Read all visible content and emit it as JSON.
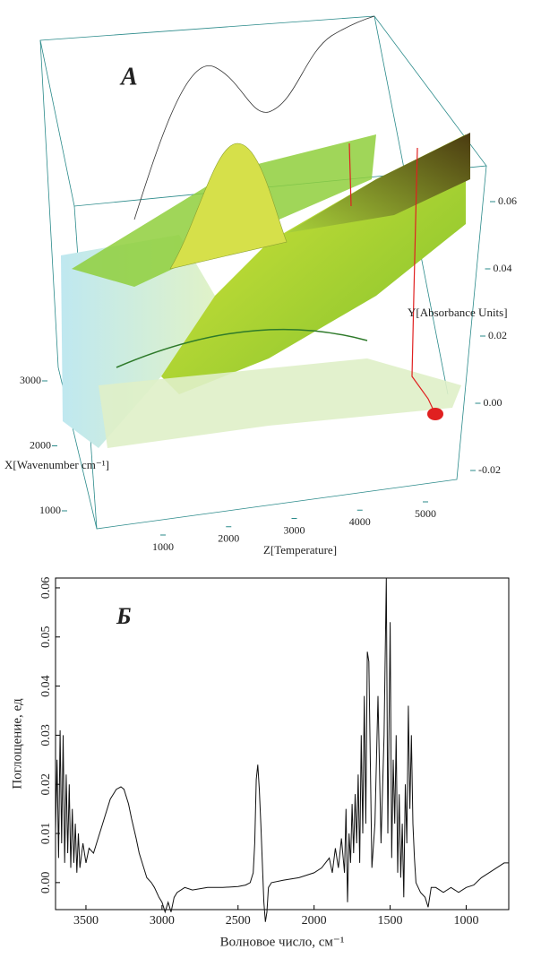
{
  "chart_data": [
    {
      "type": "surface3d",
      "title": "A",
      "xlabel": "X[Wavenumber cm⁻¹]",
      "ylabel": "Y[Absorbance Units]",
      "zlabel": "Z[Temperature]",
      "xlim": [
        1000,
        3000
      ],
      "xticks": [
        1000,
        2000,
        3000
      ],
      "ylim": [
        -0.02,
        0.06
      ],
      "yticks": [
        -0.02,
        {
          "value": 0,
          "label": "0.00"
        },
        0.02,
        0.04,
        0.06
      ],
      "zlim": [
        1000,
        5000
      ],
      "zticks": [
        1000,
        2000,
        3000,
        4000,
        5000
      ]
    },
    {
      "type": "line",
      "title": "Б",
      "xlabel": "Волновое число, см⁻¹",
      "ylabel": "Поглощение, ед",
      "xlim": [
        3700,
        720
      ],
      "xticks": [
        3500,
        3000,
        2500,
        2000,
        1500,
        1000
      ],
      "ylim": [
        -0.0055,
        0.062
      ],
      "yticks": [
        {
          "value": 0,
          "label": "0.00"
        },
        0.01,
        0.02,
        0.03,
        0.04,
        0.05,
        0.06
      ],
      "color": "#111111",
      "x": [
        3700,
        3690,
        3680,
        3670,
        3660,
        3650,
        3640,
        3630,
        3620,
        3610,
        3600,
        3590,
        3580,
        3570,
        3560,
        3550,
        3540,
        3520,
        3500,
        3480,
        3450,
        3420,
        3400,
        3370,
        3340,
        3300,
        3270,
        3250,
        3220,
        3200,
        3170,
        3150,
        3120,
        3100,
        3070,
        3050,
        3020,
        3000,
        2980,
        2960,
        2940,
        2920,
        2900,
        2850,
        2800,
        2700,
        2600,
        2500,
        2450,
        2420,
        2400,
        2390,
        2380,
        2370,
        2360,
        2350,
        2340,
        2330,
        2320,
        2310,
        2300,
        2280,
        2200,
        2100,
        2000,
        1950,
        1900,
        1880,
        1860,
        1840,
        1820,
        1800,
        1790,
        1780,
        1770,
        1760,
        1750,
        1740,
        1730,
        1720,
        1710,
        1700,
        1690,
        1680,
        1670,
        1660,
        1650,
        1640,
        1620,
        1600,
        1580,
        1560,
        1540,
        1525,
        1515,
        1500,
        1490,
        1480,
        1470,
        1460,
        1450,
        1440,
        1430,
        1420,
        1410,
        1400,
        1390,
        1380,
        1370,
        1360,
        1350,
        1340,
        1330,
        1300,
        1270,
        1250,
        1230,
        1200,
        1150,
        1100,
        1050,
        1000,
        950,
        900,
        850,
        800,
        750,
        720
      ],
      "values": [
        0.01,
        0.025,
        0.005,
        0.031,
        0.008,
        0.03,
        0.004,
        0.022,
        0.006,
        0.02,
        0.003,
        0.015,
        0.004,
        0.012,
        0.002,
        0.01,
        0.003,
        0.008,
        0.004,
        0.007,
        0.006,
        0.009,
        0.011,
        0.014,
        0.017,
        0.019,
        0.0195,
        0.019,
        0.016,
        0.013,
        0.009,
        0.006,
        0.003,
        0.001,
        0.0,
        -0.001,
        -0.003,
        -0.004,
        -0.006,
        -0.004,
        -0.006,
        -0.003,
        -0.002,
        -0.001,
        -0.0015,
        -0.001,
        -0.001,
        -0.0008,
        -0.0005,
        0.0,
        0.002,
        0.008,
        0.021,
        0.024,
        0.019,
        0.012,
        0.004,
        -0.004,
        -0.008,
        -0.006,
        -0.001,
        0.0,
        0.0005,
        0.001,
        0.002,
        0.003,
        0.005,
        0.002,
        0.007,
        0.003,
        0.009,
        0.002,
        0.015,
        -0.004,
        0.01,
        0.004,
        0.016,
        0.006,
        0.018,
        0.008,
        0.022,
        0.004,
        0.03,
        0.01,
        0.038,
        0.012,
        0.047,
        0.045,
        0.003,
        0.012,
        0.038,
        0.008,
        0.03,
        0.062,
        0.01,
        0.053,
        0.005,
        0.025,
        0.012,
        0.03,
        0.002,
        0.018,
        0.001,
        0.012,
        -0.003,
        0.02,
        0.008,
        0.036,
        0.015,
        0.03,
        0.012,
        0.005,
        0.0,
        -0.002,
        -0.003,
        -0.005,
        -0.001,
        -0.001,
        -0.002,
        -0.001,
        -0.002,
        -0.001,
        -0.0005,
        0.001,
        0.002,
        0.003,
        0.004,
        0.004
      ]
    }
  ]
}
